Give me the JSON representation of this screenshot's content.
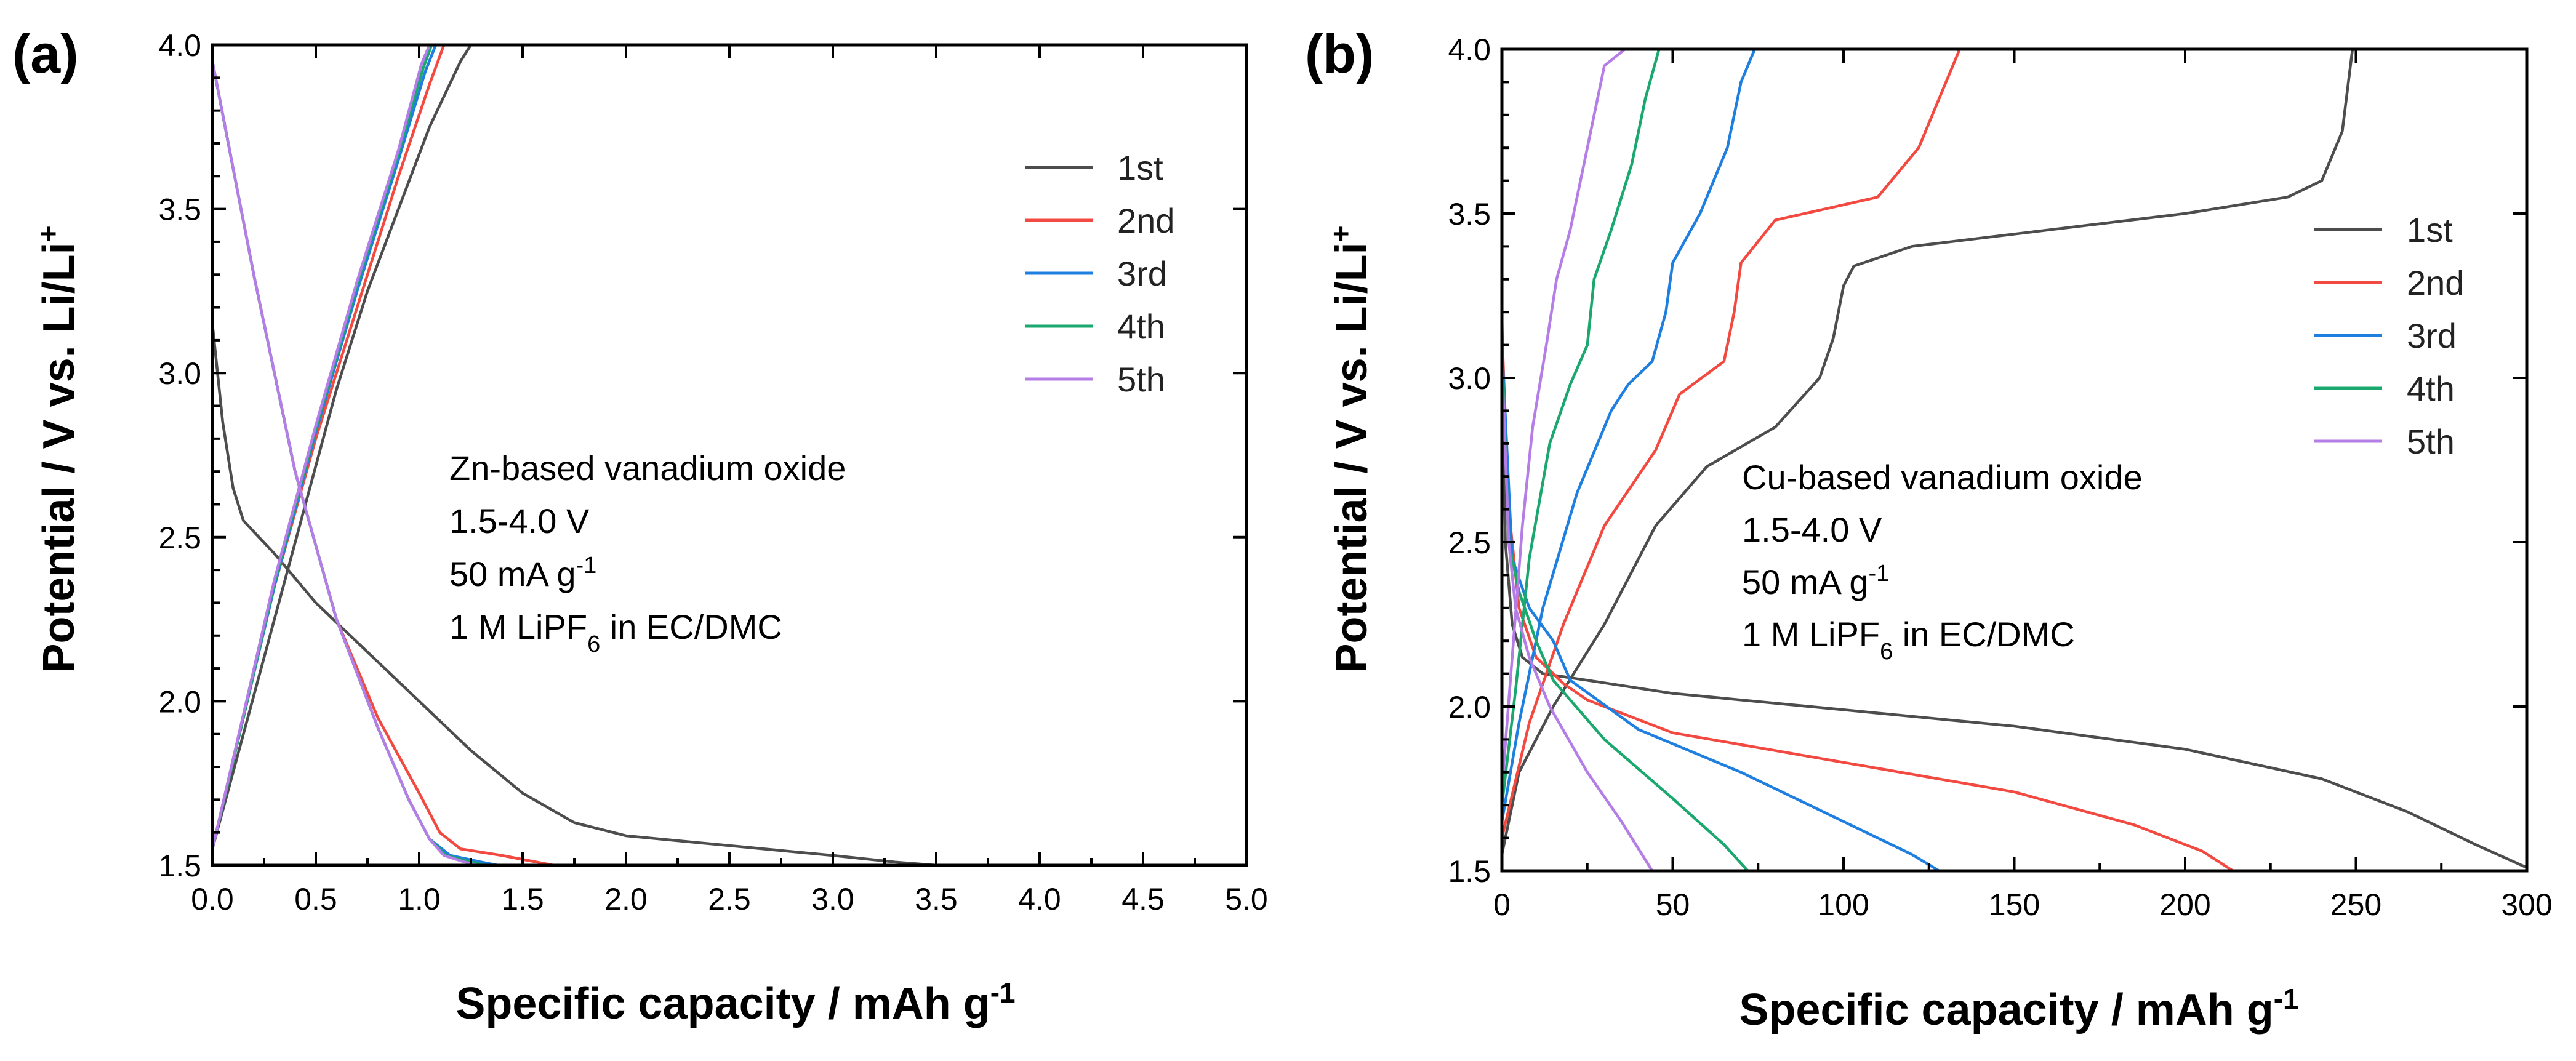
{
  "colors": {
    "1st": "#4d4d4d",
    "2nd": "#f24a40",
    "3rd": "#1f7fe0",
    "4th": "#1aa86e",
    "5th": "#b57ee6"
  },
  "chart_data": [
    {
      "type": "line",
      "panel_label": "(a)",
      "xlabel": "Specific capacity / mAh g",
      "xlabel_sup": "-1",
      "ylabel": "Potential / V vs. Li/Li",
      "ylabel_sup": "+",
      "xlim": [
        0,
        5
      ],
      "ylim": [
        1.5,
        4.0
      ],
      "x_ticks": [
        "0.0",
        "0.5",
        "1.0",
        "1.5",
        "2.0",
        "2.5",
        "3.0",
        "3.5",
        "4.0",
        "4.5",
        "5.0"
      ],
      "x_tick_values": [
        0,
        0.5,
        1,
        1.5,
        2,
        2.5,
        3,
        3.5,
        4,
        4.5,
        5
      ],
      "y_ticks": [
        "1.5",
        "2.0",
        "2.5",
        "3.0",
        "3.5",
        "4.0"
      ],
      "y_tick_values": [
        1.5,
        2.0,
        2.5,
        3.0,
        3.5,
        4.0
      ],
      "legend": [
        "1st",
        "2nd",
        "3rd",
        "4th",
        "5th"
      ],
      "legend_position": "top-right",
      "annotation": {
        "line1": "Zn-based vanadium oxide",
        "line2": "1.5-4.0 V",
        "line3_main": "50 mA g",
        "line3_sup": "-1",
        "line4_pre": "1 M LiPF",
        "line4_sub": "6",
        "line4_post": " in EC/DMC"
      },
      "series": [
        {
          "name": "1st",
          "discharge": [
            [
              0,
              3.15
            ],
            [
              0.05,
              2.85
            ],
            [
              0.1,
              2.65
            ],
            [
              0.15,
              2.55
            ],
            [
              0.3,
              2.45
            ],
            [
              0.5,
              2.3
            ],
            [
              0.75,
              2.15
            ],
            [
              1.0,
              2.0
            ],
            [
              1.25,
              1.85
            ],
            [
              1.5,
              1.72
            ],
            [
              1.75,
              1.63
            ],
            [
              2.0,
              1.59
            ],
            [
              2.5,
              1.56
            ],
            [
              3.0,
              1.53
            ],
            [
              3.3,
              1.51
            ],
            [
              3.5,
              1.5
            ]
          ],
          "charge": [
            [
              0,
              1.55
            ],
            [
              0.15,
              1.9
            ],
            [
              0.3,
              2.25
            ],
            [
              0.45,
              2.6
            ],
            [
              0.6,
              2.95
            ],
            [
              0.75,
              3.25
            ],
            [
              0.9,
              3.5
            ],
            [
              1.05,
              3.75
            ],
            [
              1.2,
              3.95
            ],
            [
              1.25,
              4.0
            ]
          ]
        },
        {
          "name": "2nd",
          "discharge": [
            [
              0,
              3.95
            ],
            [
              0.2,
              3.3
            ],
            [
              0.4,
              2.7
            ],
            [
              0.6,
              2.25
            ],
            [
              0.8,
              1.95
            ],
            [
              1.0,
              1.72
            ],
            [
              1.1,
              1.6
            ],
            [
              1.2,
              1.55
            ],
            [
              1.4,
              1.53
            ],
            [
              1.65,
              1.5
            ]
          ],
          "charge": [
            [
              0,
              1.55
            ],
            [
              0.15,
              1.95
            ],
            [
              0.3,
              2.35
            ],
            [
              0.5,
              2.8
            ],
            [
              0.7,
              3.2
            ],
            [
              0.9,
              3.6
            ],
            [
              1.05,
              3.88
            ],
            [
              1.12,
              4.0
            ]
          ]
        },
        {
          "name": "3rd",
          "discharge": [
            [
              0,
              3.95
            ],
            [
              0.2,
              3.3
            ],
            [
              0.4,
              2.7
            ],
            [
              0.6,
              2.25
            ],
            [
              0.8,
              1.92
            ],
            [
              0.95,
              1.7
            ],
            [
              1.05,
              1.58
            ],
            [
              1.15,
              1.53
            ],
            [
              1.3,
              1.51
            ],
            [
              1.38,
              1.5
            ]
          ],
          "charge": [
            [
              0,
              1.55
            ],
            [
              0.15,
              1.95
            ],
            [
              0.3,
              2.35
            ],
            [
              0.5,
              2.82
            ],
            [
              0.7,
              3.25
            ],
            [
              0.9,
              3.65
            ],
            [
              1.03,
              3.92
            ],
            [
              1.08,
              4.0
            ]
          ]
        },
        {
          "name": "4th",
          "discharge": [
            [
              0,
              3.95
            ],
            [
              0.2,
              3.3
            ],
            [
              0.4,
              2.7
            ],
            [
              0.6,
              2.25
            ],
            [
              0.8,
              1.92
            ],
            [
              0.95,
              1.7
            ],
            [
              1.05,
              1.58
            ],
            [
              1.13,
              1.53
            ],
            [
              1.25,
              1.51
            ],
            [
              1.32,
              1.5
            ]
          ],
          "charge": [
            [
              0,
              1.55
            ],
            [
              0.15,
              1.95
            ],
            [
              0.3,
              2.36
            ],
            [
              0.5,
              2.83
            ],
            [
              0.7,
              3.27
            ],
            [
              0.9,
              3.67
            ],
            [
              1.02,
              3.93
            ],
            [
              1.06,
              4.0
            ]
          ]
        },
        {
          "name": "5th",
          "discharge": [
            [
              0,
              3.95
            ],
            [
              0.2,
              3.3
            ],
            [
              0.4,
              2.7
            ],
            [
              0.6,
              2.25
            ],
            [
              0.8,
              1.92
            ],
            [
              0.95,
              1.7
            ],
            [
              1.05,
              1.58
            ],
            [
              1.12,
              1.53
            ],
            [
              1.22,
              1.51
            ],
            [
              1.28,
              1.5
            ]
          ],
          "charge": [
            [
              0,
              1.55
            ],
            [
              0.15,
              1.96
            ],
            [
              0.3,
              2.37
            ],
            [
              0.5,
              2.84
            ],
            [
              0.7,
              3.28
            ],
            [
              0.9,
              3.68
            ],
            [
              1.01,
              3.94
            ],
            [
              1.05,
              4.0
            ]
          ]
        }
      ]
    },
    {
      "type": "line",
      "panel_label": "(b)",
      "xlabel": "Specific capacity / mAh g",
      "xlabel_sup": "-1",
      "ylabel": "Potential / V vs. Li/Li",
      "ylabel_sup": "+",
      "xlim": [
        0,
        300
      ],
      "ylim": [
        1.5,
        4.0
      ],
      "x_ticks": [
        "0",
        "50",
        "100",
        "150",
        "200",
        "250",
        "300"
      ],
      "x_tick_values": [
        0,
        50,
        100,
        150,
        200,
        250,
        300
      ],
      "y_ticks": [
        "1.5",
        "2.0",
        "2.5",
        "3.0",
        "3.5",
        "4.0"
      ],
      "y_tick_values": [
        1.5,
        2.0,
        2.5,
        3.0,
        3.5,
        4.0
      ],
      "legend": [
        "1st",
        "2nd",
        "3rd",
        "4th",
        "5th"
      ],
      "legend_position": "right",
      "annotation": {
        "line1": "Cu-based vanadium oxide",
        "line2": "1.5-4.0 V",
        "line3_main": "50 mA g",
        "line3_sup": "-1",
        "line4_pre": "1 M LiPF",
        "line4_sub": "6",
        "line4_post": " in EC/DMC"
      },
      "series": [
        {
          "name": "1st",
          "discharge": [
            [
              0,
              3.2
            ],
            [
              1,
              2.5
            ],
            [
              3,
              2.25
            ],
            [
              6,
              2.15
            ],
            [
              12,
              2.1
            ],
            [
              25,
              2.08
            ],
            [
              50,
              2.04
            ],
            [
              100,
              1.99
            ],
            [
              150,
              1.94
            ],
            [
              200,
              1.87
            ],
            [
              240,
              1.78
            ],
            [
              265,
              1.68
            ],
            [
              285,
              1.58
            ],
            [
              300,
              1.51
            ]
          ],
          "charge": [
            [
              0,
              1.55
            ],
            [
              5,
              1.8
            ],
            [
              15,
              2.0
            ],
            [
              30,
              2.25
            ],
            [
              45,
              2.55
            ],
            [
              60,
              2.73
            ],
            [
              80,
              2.85
            ],
            [
              93,
              3.0
            ],
            [
              97,
              3.12
            ],
            [
              100,
              3.28
            ],
            [
              103,
              3.34
            ],
            [
              120,
              3.4
            ],
            [
              160,
              3.45
            ],
            [
              200,
              3.5
            ],
            [
              230,
              3.55
            ],
            [
              240,
              3.6
            ],
            [
              246,
              3.75
            ],
            [
              249,
              4.0
            ]
          ]
        },
        {
          "name": "2nd",
          "discharge": [
            [
              0,
              3.15
            ],
            [
              2,
              2.6
            ],
            [
              5,
              2.3
            ],
            [
              10,
              2.15
            ],
            [
              18,
              2.07
            ],
            [
              25,
              2.02
            ],
            [
              50,
              1.92
            ],
            [
              100,
              1.83
            ],
            [
              150,
              1.74
            ],
            [
              185,
              1.64
            ],
            [
              205,
              1.56
            ],
            [
              214,
              1.5
            ]
          ],
          "charge": [
            [
              0,
              1.6
            ],
            [
              8,
              1.95
            ],
            [
              18,
              2.25
            ],
            [
              30,
              2.55
            ],
            [
              45,
              2.78
            ],
            [
              52,
              2.95
            ],
            [
              65,
              3.05
            ],
            [
              68,
              3.2
            ],
            [
              70,
              3.35
            ],
            [
              80,
              3.48
            ],
            [
              110,
              3.55
            ],
            [
              122,
              3.7
            ],
            [
              128,
              3.85
            ],
            [
              134,
              4.0
            ]
          ]
        },
        {
          "name": "3rd",
          "discharge": [
            [
              0,
              3.1
            ],
            [
              3,
              2.45
            ],
            [
              8,
              2.3
            ],
            [
              15,
              2.2
            ],
            [
              20,
              2.08
            ],
            [
              40,
              1.93
            ],
            [
              70,
              1.8
            ],
            [
              100,
              1.65
            ],
            [
              120,
              1.55
            ],
            [
              128,
              1.5
            ]
          ],
          "charge": [
            [
              0,
              1.65
            ],
            [
              5,
              1.95
            ],
            [
              12,
              2.3
            ],
            [
              22,
              2.65
            ],
            [
              32,
              2.9
            ],
            [
              37,
              2.98
            ],
            [
              44,
              3.05
            ],
            [
              48,
              3.2
            ],
            [
              50,
              3.35
            ],
            [
              58,
              3.5
            ],
            [
              66,
              3.7
            ],
            [
              70,
              3.9
            ],
            [
              74,
              4.0
            ],
            [
              80,
              4.0
            ]
          ]
        },
        {
          "name": "4th",
          "discharge": [
            [
              0,
              3.1
            ],
            [
              2,
              2.5
            ],
            [
              5,
              2.35
            ],
            [
              10,
              2.2
            ],
            [
              15,
              2.08
            ],
            [
              30,
              1.9
            ],
            [
              50,
              1.72
            ],
            [
              65,
              1.58
            ],
            [
              72,
              1.5
            ]
          ],
          "charge": [
            [
              0,
              1.7
            ],
            [
              4,
              2.05
            ],
            [
              8,
              2.45
            ],
            [
              14,
              2.8
            ],
            [
              20,
              2.98
            ],
            [
              25,
              3.1
            ],
            [
              27,
              3.3
            ],
            [
              32,
              3.45
            ],
            [
              38,
              3.65
            ],
            [
              42,
              3.85
            ],
            [
              46,
              4.0
            ],
            [
              53,
              4.0
            ]
          ]
        },
        {
          "name": "5th",
          "discharge": [
            [
              0,
              3.05
            ],
            [
              2,
              2.5
            ],
            [
              4,
              2.3
            ],
            [
              8,
              2.15
            ],
            [
              14,
              2.0
            ],
            [
              25,
              1.8
            ],
            [
              35,
              1.65
            ],
            [
              44,
              1.5
            ]
          ],
          "charge": [
            [
              0,
              1.75
            ],
            [
              3,
              2.15
            ],
            [
              6,
              2.55
            ],
            [
              9,
              2.85
            ],
            [
              13,
              3.1
            ],
            [
              16,
              3.3
            ],
            [
              20,
              3.45
            ],
            [
              25,
              3.7
            ],
            [
              30,
              3.95
            ],
            [
              36,
              4.0
            ],
            [
              42,
              4.0
            ]
          ]
        }
      ]
    }
  ]
}
